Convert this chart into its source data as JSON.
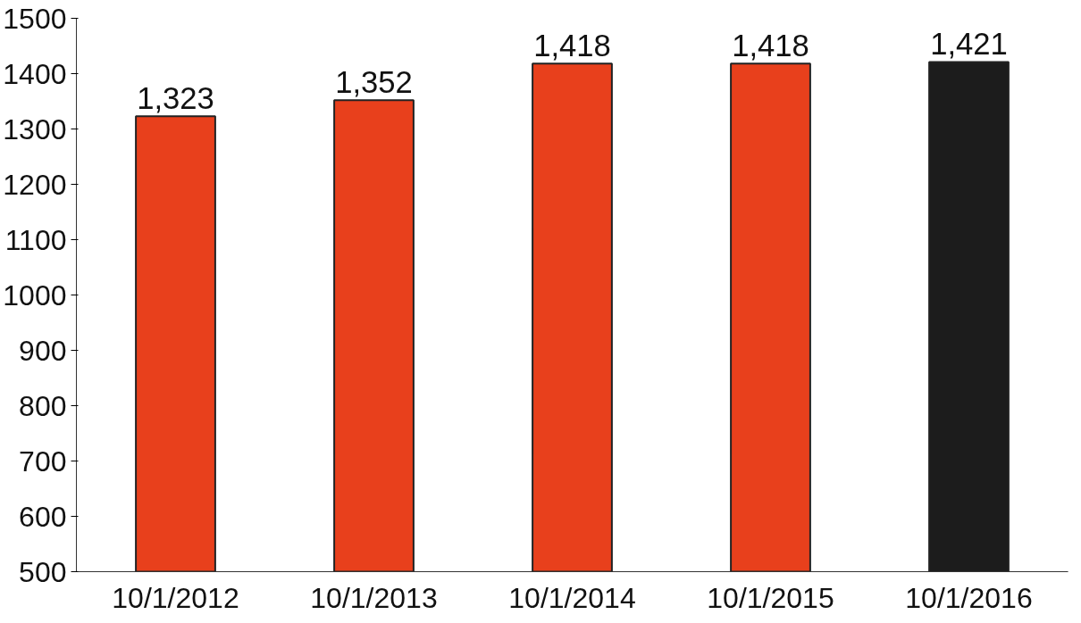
{
  "chart_data": {
    "type": "bar",
    "categories": [
      "10/1/2012",
      "10/1/2013",
      "10/1/2014",
      "10/1/2015",
      "10/1/2016"
    ],
    "values": [
      1323,
      1352,
      1418,
      1418,
      1421
    ],
    "value_labels": [
      "1,323",
      "1,352",
      "1,418",
      "1,418",
      "1,421"
    ],
    "colors": [
      "#e8401c",
      "#e8401c",
      "#e8401c",
      "#e8401c",
      "#1c1c1c"
    ],
    "ylim": [
      500,
      1500
    ],
    "yticks": [
      500,
      600,
      700,
      800,
      900,
      1000,
      1100,
      1200,
      1300,
      1400,
      1500
    ],
    "grid": false
  }
}
